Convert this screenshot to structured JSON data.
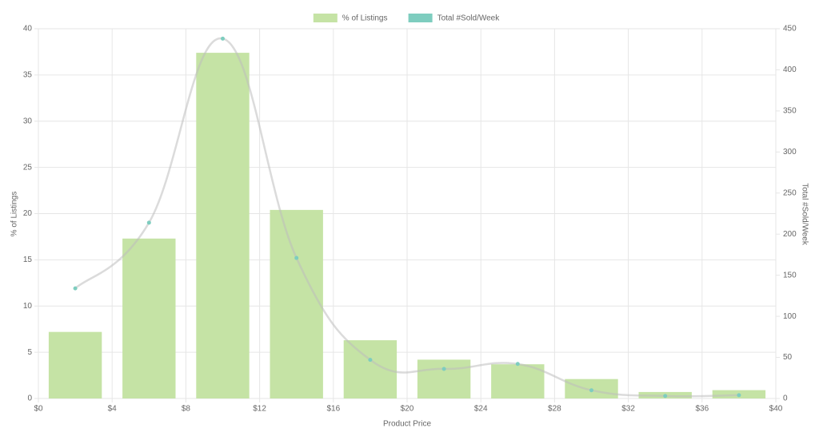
{
  "chart_data": {
    "type": "bar",
    "x_label": "Product Price",
    "y_label": "% of Listings",
    "y2_label": "Total #Sold/Week",
    "x": [
      2,
      6,
      10,
      14,
      18,
      22,
      26,
      30,
      34,
      38
    ],
    "series": [
      {
        "name": "% of Listings",
        "type": "bar",
        "color": "#c5e3a5",
        "values": [
          7.2,
          17.3,
          37.4,
          20.4,
          6.3,
          4.2,
          3.7,
          2.1,
          0.7,
          0.9
        ]
      },
      {
        "name": "Total #Sold/Week",
        "type": "line",
        "axis": "y2",
        "color": "#7ecdbf",
        "values": [
          134,
          214,
          438,
          171,
          47,
          36,
          42,
          10,
          3,
          4
        ]
      }
    ],
    "xlim": [
      0,
      40
    ],
    "xticks": [
      {
        "value": 0,
        "label": "$0"
      },
      {
        "value": 4,
        "label": "$4"
      },
      {
        "value": 8,
        "label": "$8"
      },
      {
        "value": 12,
        "label": "$12"
      },
      {
        "value": 16,
        "label": "$16"
      },
      {
        "value": 20,
        "label": "$20"
      },
      {
        "value": 24,
        "label": "$24"
      },
      {
        "value": 28,
        "label": "$28"
      },
      {
        "value": 32,
        "label": "$32"
      },
      {
        "value": 36,
        "label": "$36"
      },
      {
        "value": 40,
        "label": "$40"
      }
    ],
    "ylim": [
      0,
      40
    ],
    "yticks": [
      0,
      5,
      10,
      15,
      20,
      25,
      30,
      35,
      40
    ],
    "y2lim": [
      0,
      450
    ],
    "y2ticks": [
      0,
      50,
      100,
      150,
      200,
      250,
      300,
      350,
      400,
      450
    ],
    "grid": true,
    "legend": "top"
  }
}
